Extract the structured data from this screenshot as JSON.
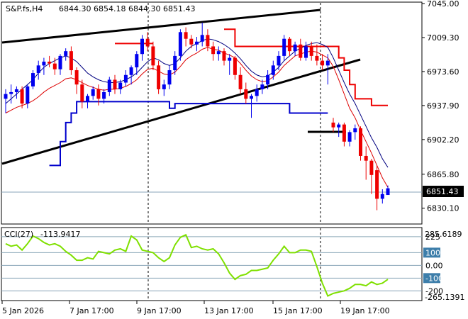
{
  "header": {
    "symbol": "S&P.fs,H4",
    "ohlc": "6844.30 6854.18 6844.30 6851.43"
  },
  "chart_data": [
    {
      "type": "candlestick",
      "title": "S&P.fs,H4",
      "ylim": [
        6815,
        7045
      ],
      "price_ticks": [
        "7045.00",
        "7009.30",
        "6973.60",
        "6937.90",
        "6902.20",
        "6865.80",
        "6830.10"
      ],
      "last_price": "6851.43",
      "x_labels": [
        "5 Jan 2026",
        "7 Jan 17:00",
        "9 Jan 17:00",
        "13 Jan 17:00",
        "15 Jan 17:00",
        "19 Jan 17:00"
      ],
      "candles": [
        [
          6945,
          6955,
          6930,
          6950
        ],
        [
          6950,
          6960,
          6940,
          6952
        ],
        [
          6952,
          6958,
          6945,
          6955
        ],
        [
          6955,
          6958,
          6935,
          6940
        ],
        [
          6940,
          6960,
          6935,
          6958
        ],
        [
          6958,
          6975,
          6955,
          6972
        ],
        [
          6972,
          6985,
          6965,
          6980
        ],
        [
          6980,
          6988,
          6970,
          6984
        ],
        [
          6984,
          6990,
          6978,
          6982
        ],
        [
          6982,
          6988,
          6970,
          6976
        ],
        [
          6976,
          6992,
          6970,
          6990
        ],
        [
          6990,
          6998,
          6985,
          6995
        ],
        [
          6995,
          7000,
          6970,
          6975
        ],
        [
          6975,
          6978,
          6950,
          6960
        ],
        [
          6960,
          6965,
          6935,
          6942
        ],
        [
          6942,
          6950,
          6935,
          6948
        ],
        [
          6948,
          6958,
          6944,
          6955
        ],
        [
          6955,
          6960,
          6938,
          6945
        ],
        [
          6945,
          6955,
          6940,
          6952
        ],
        [
          6952,
          6968,
          6948,
          6965
        ],
        [
          6965,
          6970,
          6950,
          6955
        ],
        [
          6955,
          6965,
          6950,
          6962
        ],
        [
          6962,
          6975,
          6958,
          6970
        ],
        [
          6970,
          6980,
          6960,
          6978
        ],
        [
          6978,
          6995,
          6970,
          6992
        ],
        [
          6992,
          7012,
          6985,
          7008
        ],
        [
          7008,
          7015,
          6995,
          7000
        ],
        [
          7000,
          7005,
          6975,
          6980
        ],
        [
          6980,
          6985,
          6950,
          6955
        ],
        [
          6955,
          6965,
          6948,
          6960
        ],
        [
          6960,
          6980,
          6955,
          6975
        ],
        [
          6975,
          6995,
          6970,
          6990
        ],
        [
          6990,
          7018,
          6985,
          7015
        ],
        [
          7015,
          7020,
          7000,
          7008
        ],
        [
          7008,
          7012,
          6998,
          7002
        ],
        [
          7002,
          7010,
          6995,
          7005
        ],
        [
          7005,
          7025,
          7000,
          7012
        ],
        [
          7012,
          7018,
          6995,
          7000
        ],
        [
          7000,
          7005,
          6985,
          6992
        ],
        [
          6992,
          7000,
          6985,
          6995
        ],
        [
          6995,
          6998,
          6980,
          6985
        ],
        [
          6985,
          6992,
          6970,
          6988
        ],
        [
          6988,
          6990,
          6965,
          6970
        ],
        [
          6970,
          6978,
          6950,
          6955
        ],
        [
          6955,
          6962,
          6940,
          6945
        ],
        [
          6945,
          6950,
          6925,
          6948
        ],
        [
          6948,
          6960,
          6942,
          6955
        ],
        [
          6955,
          6965,
          6950,
          6960
        ],
        [
          6960,
          6975,
          6955,
          6970
        ],
        [
          6970,
          6985,
          6965,
          6980
        ],
        [
          6980,
          6995,
          6975,
          6990
        ],
        [
          6990,
          7012,
          6985,
          7008
        ],
        [
          7008,
          7010,
          6990,
          6995
        ],
        [
          6995,
          7005,
          6990,
          7002
        ],
        [
          7002,
          7008,
          6985,
          6988
        ],
        [
          6988,
          7005,
          6985,
          7000
        ],
        [
          7000,
          7005,
          6985,
          6990
        ],
        [
          6990,
          7002,
          6980,
          6985
        ],
        [
          6985,
          6992,
          6975,
          6980
        ],
        [
          6980,
          6992,
          6960,
          6985
        ],
        [
          6920,
          6925,
          6910,
          6915
        ],
        [
          6915,
          6920,
          6905,
          6918
        ],
        [
          6918,
          6920,
          6895,
          6900
        ],
        [
          6900,
          6912,
          6895,
          6910
        ],
        [
          6910,
          6918,
          6902,
          6914
        ],
        [
          6914,
          6916,
          6880,
          6885
        ],
        [
          6885,
          6895,
          6860,
          6880
        ],
        [
          6880,
          6882,
          6845,
          6865
        ],
        [
          6870,
          6875,
          6828,
          6840
        ],
        [
          6840,
          6850,
          6835,
          6845
        ],
        [
          6844,
          6854,
          6844,
          6851
        ]
      ],
      "fast_ma": [
        6930,
        6933,
        6936,
        6938,
        6940,
        6943,
        6947,
        6952,
        6956,
        6959,
        6962,
        6966,
        6967,
        6965,
        6962,
        6959,
        6957,
        6955,
        6954,
        6955,
        6955,
        6956,
        6958,
        6961,
        6965,
        6971,
        6976,
        6977,
        6974,
        6971,
        6970,
        6973,
        6979,
        6986,
        6990,
        6993,
        6997,
        6999,
        6997,
        6996,
        6993,
        6991,
        6988,
        6982,
        6975,
        6969,
        6965,
        6963,
        6964,
        6968,
        6973,
        6980,
        6985,
        6990,
        6992,
        6994,
        6995,
        6994,
        6991,
        6988,
        6979,
        6965,
        6950,
        6935,
        6925,
        6912,
        6900,
        6888,
        6875,
        6862,
        6852
      ],
      "slow_ma": [
        6940,
        6945,
        6950,
        6955,
        6960,
        6965,
        6972,
        6978,
        6982,
        6985,
        6988,
        6990,
        6988,
        6984,
        6978,
        6972,
        6968,
        6965,
        6963,
        6962,
        6962,
        6963,
        6965,
        6968,
        6972,
        6978,
        6984,
        6988,
        6986,
        6982,
        6980,
        6982,
        6988,
        6995,
        7000,
        7003,
        7006,
        7008,
        7007,
        7005,
        7002,
        6998,
        6993,
        6987,
        6980,
        6974,
        6970,
        6968,
        6969,
        6973,
        6978,
        6985,
        6990,
        6995,
        6998,
        7001,
        7003,
        7004,
        7002,
        6999,
        6988,
        6975,
        6962,
        6950,
        6940,
        6928,
        6916,
        6904,
        6894,
        6882,
        6873
      ],
      "red_channel": [
        null,
        null,
        null,
        null,
        null,
        null,
        null,
        null,
        null,
        null,
        null,
        null,
        null,
        null,
        null,
        null,
        null,
        null,
        null,
        null,
        7003,
        7003,
        7003,
        7003,
        7003,
        7003,
        7003,
        7003,
        null,
        null,
        null,
        null,
        null,
        null,
        null,
        null,
        null,
        null,
        null,
        null,
        7018,
        7018,
        7000,
        7000,
        7000,
        7000,
        7000,
        7000,
        7000,
        7000,
        7000,
        7000,
        7000,
        7000,
        7000,
        7000,
        7000,
        7000,
        7000,
        7000,
        7000,
        6988,
        6975,
        6960,
        6945,
        6945,
        6945,
        6938,
        6938,
        6938,
        6938
      ],
      "blue_channel": [
        null,
        null,
        null,
        null,
        null,
        null,
        null,
        null,
        6875,
        6875,
        6900,
        6920,
        6930,
        6942,
        6942,
        6942,
        6942,
        6942,
        6942,
        6942,
        6942,
        6942,
        6942,
        6942,
        6942,
        6942,
        6942,
        6942,
        6942,
        6942,
        6935,
        6940,
        6940,
        6940,
        6940,
        6940,
        6940,
        6940,
        6940,
        6940,
        6940,
        6940,
        6940,
        6940,
        6940,
        6940,
        6940,
        6940,
        6940,
        6940,
        6940,
        6940,
        6930,
        6930,
        6930,
        6930,
        6930,
        6930,
        6930,
        6930,
        null,
        null,
        null,
        null,
        null,
        null,
        null,
        null,
        null,
        null,
        null
      ]
    },
    {
      "type": "line",
      "title": "CCI(27)",
      "value_label": "-113.9417",
      "ylim": [
        -265.1391,
        285.6189
      ],
      "top_label": "285.6189",
      "bottom_label": "-265.1391",
      "levels": [
        {
          "value": 225,
          "label": "225"
        },
        {
          "value": 100,
          "label": "100"
        },
        {
          "value": 0,
          "label": "0.00"
        },
        {
          "value": -100,
          "label": "-100"
        },
        {
          "value": -200,
          "label": "-200"
        }
      ],
      "values": [
        170,
        150,
        160,
        120,
        170,
        230,
        210,
        180,
        160,
        170,
        150,
        110,
        80,
        40,
        40,
        60,
        50,
        110,
        100,
        90,
        120,
        130,
        110,
        230,
        200,
        120,
        110,
        100,
        60,
        30,
        60,
        160,
        220,
        240,
        140,
        150,
        130,
        120,
        130,
        90,
        20,
        -60,
        -110,
        -80,
        -70,
        -40,
        -40,
        -30,
        -20,
        40,
        90,
        150,
        100,
        100,
        120,
        120,
        110,
        -10,
        -140,
        -240,
        -220,
        -210,
        -200,
        -180,
        -150,
        -150,
        -160,
        -130,
        -150,
        -140,
        -110
      ]
    }
  ]
}
